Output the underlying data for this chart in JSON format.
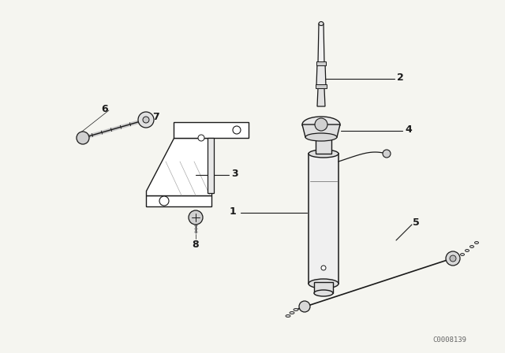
{
  "background_color": "#f5f5f0",
  "watermark": "C0008139",
  "line_color": "#1a1a1a",
  "label_fontsize": 9,
  "watermark_fontsize": 6.5,
  "fig_width": 6.4,
  "fig_height": 4.48,
  "dpi": 100
}
